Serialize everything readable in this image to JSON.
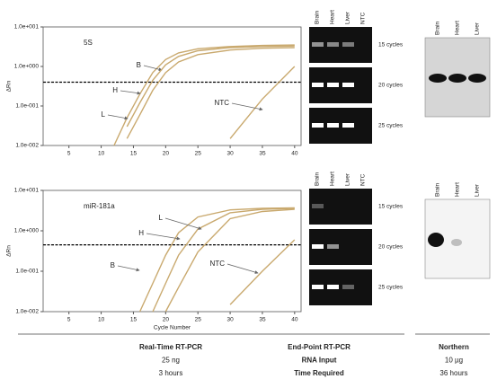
{
  "chart_data": [
    {
      "type": "line",
      "title": "5S",
      "y_label": "ΔRn",
      "log_y": true,
      "xlim": [
        1,
        41
      ],
      "xticks": [
        5,
        10,
        15,
        20,
        25,
        30,
        35,
        40
      ],
      "ylim": [
        0.01,
        10
      ],
      "yticks": [
        {
          "value": 10,
          "label": "1.0e+001"
        },
        {
          "value": 1,
          "label": "1.0e+000"
        },
        {
          "value": 0.1,
          "label": "1.0e-001"
        },
        {
          "value": 0.01,
          "label": "1.0e-002"
        }
      ],
      "threshold": 0.4,
      "x": [
        12,
        14,
        16,
        18,
        20,
        22,
        25,
        30,
        35,
        40
      ],
      "series": [
        {
          "name": "B",
          "color": "#c9a96e",
          "values": [
            0.01,
            0.05,
            0.2,
            0.7,
            1.5,
            2.2,
            2.8,
            3.2,
            3.4,
            3.5
          ]
        },
        {
          "name": "H",
          "color": "#c9a96e",
          "values": [
            null,
            0.03,
            0.12,
            0.45,
            1.1,
            1.8,
            2.5,
            3.0,
            3.2,
            3.3
          ]
        },
        {
          "name": "L",
          "color": "#c9a96e",
          "values": [
            null,
            0.015,
            0.06,
            0.25,
            0.7,
            1.3,
            2.0,
            2.6,
            2.9,
            3.0
          ]
        },
        {
          "name": "NTC",
          "color": "#c9a96e",
          "values": [
            null,
            null,
            null,
            null,
            null,
            null,
            null,
            0.015,
            0.15,
            1.0
          ]
        }
      ]
    },
    {
      "type": "line",
      "title": "miR-181a",
      "y_label": "ΔRn",
      "x_label": "Cycle Number",
      "log_y": true,
      "xlim": [
        1,
        41
      ],
      "xticks": [
        5,
        10,
        15,
        20,
        25,
        30,
        35,
        40
      ],
      "ylim": [
        0.01,
        10
      ],
      "yticks": [
        {
          "value": 10,
          "label": "1.0e+001"
        },
        {
          "value": 1,
          "label": "1.0e+000"
        },
        {
          "value": 0.1,
          "label": "1.0e-001"
        },
        {
          "value": 0.01,
          "label": "1.0e-002"
        }
      ],
      "threshold": 0.45,
      "x": [
        16,
        18,
        20,
        22,
        25,
        30,
        35,
        40
      ],
      "series": [
        {
          "name": "B",
          "color": "#c9a96e",
          "values": [
            0.01,
            0.05,
            0.25,
            0.9,
            2.2,
            3.3,
            3.6,
            3.7
          ]
        },
        {
          "name": "H",
          "color": "#c9a96e",
          "values": [
            null,
            0.01,
            0.05,
            0.25,
            1.1,
            2.8,
            3.4,
            3.6
          ]
        },
        {
          "name": "L",
          "color": "#c9a96e",
          "values": [
            null,
            null,
            0.01,
            0.04,
            0.3,
            2.0,
            3.0,
            3.4
          ]
        },
        {
          "name": "NTC",
          "color": "#c9a96e",
          "values": [
            null,
            null,
            null,
            null,
            null,
            0.015,
            0.1,
            0.6
          ]
        }
      ]
    }
  ],
  "gels": [
    {
      "lanes": [
        "Brain",
        "Heart",
        "Liver",
        "NTC"
      ],
      "rows": [
        "15 cycles",
        "20 cycles",
        "25 cycles"
      ]
    },
    {
      "lanes": [
        "Brain",
        "Heart",
        "Liver",
        "NTC"
      ],
      "rows": [
        "15 cycles",
        "20 cycles",
        "25 cycles"
      ]
    }
  ],
  "northern": [
    {
      "lanes": [
        "Brain",
        "Heart",
        "Liver"
      ]
    },
    {
      "lanes": [
        "Brain",
        "Heart",
        "Liver"
      ]
    }
  ],
  "table": {
    "columns": [
      [
        "Real-Time RT-PCR",
        "25 ng",
        "3 hours"
      ],
      [
        "End-Point RT-PCR",
        "RNA Input",
        "Time Required"
      ],
      [
        "Northern",
        "10 µg",
        "36 hours"
      ]
    ]
  }
}
